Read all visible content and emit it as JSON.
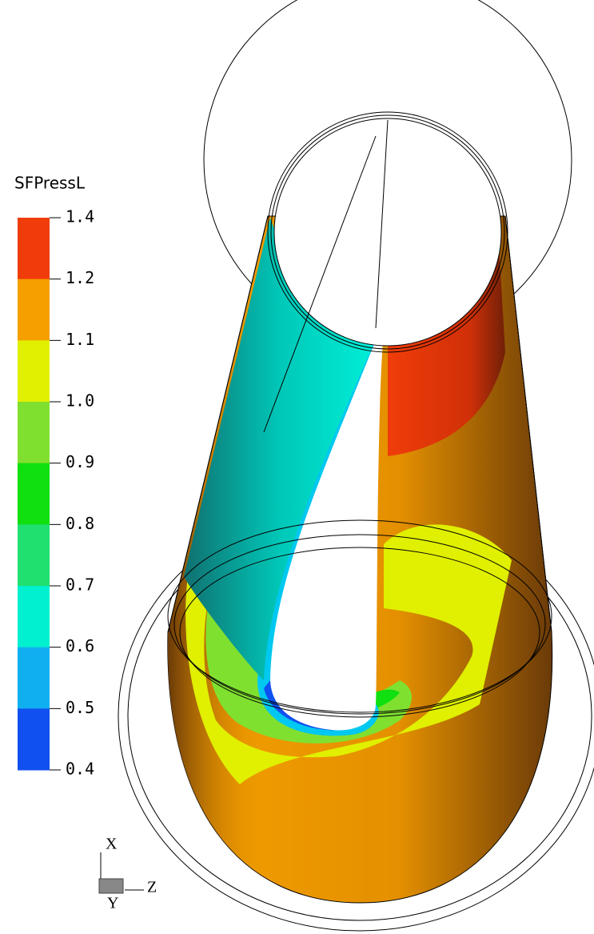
{
  "legend": {
    "title": "SFPressL",
    "labels": [
      "1.4",
      "1.2",
      "1.1",
      "1.0",
      "0.9",
      "0.8",
      "0.7",
      "0.6",
      "0.5",
      "0.4"
    ],
    "colors": [
      "#f03c0a",
      "#f5a000",
      "#e0f000",
      "#80e030",
      "#10e010",
      "#20e070",
      "#00f0d0",
      "#10b0f0",
      "#1050f0"
    ]
  },
  "axes": {
    "x": "X",
    "y": "Y",
    "z": "Z"
  }
}
